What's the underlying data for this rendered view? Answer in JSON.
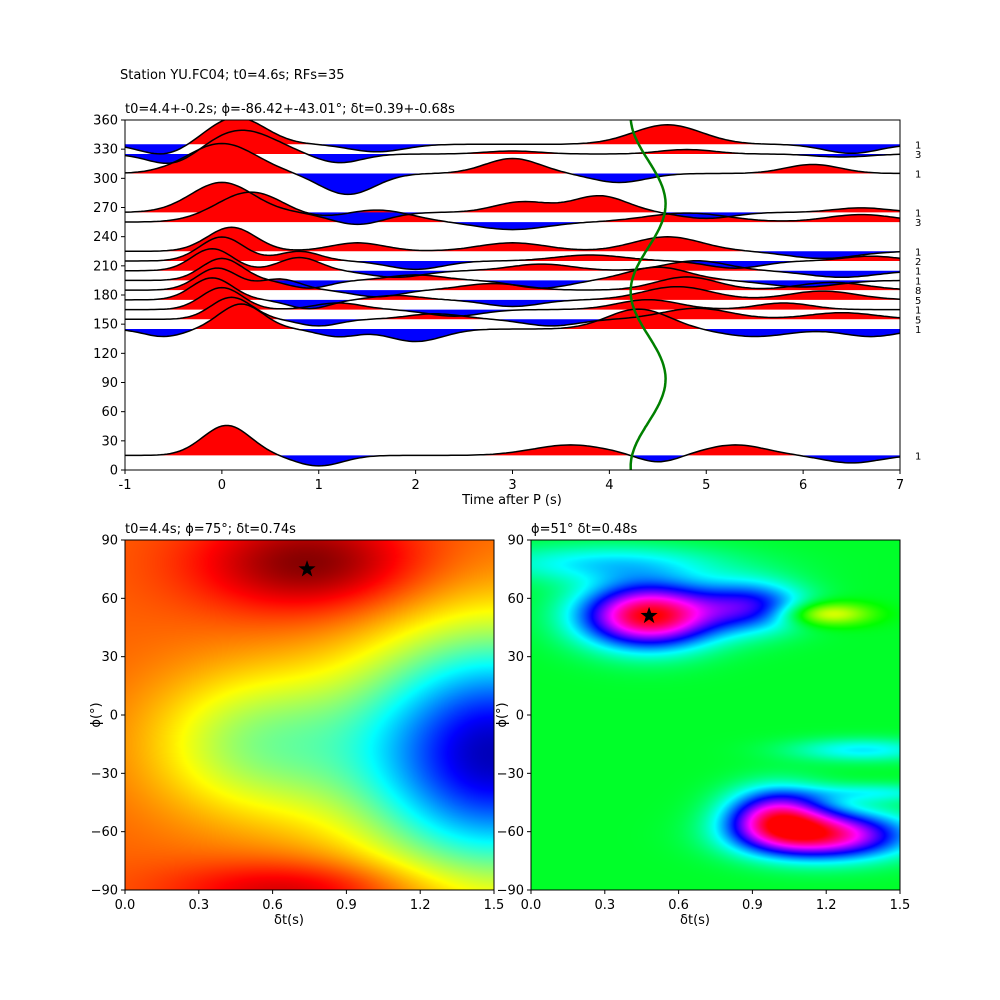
{
  "suptitle": "Station YU.FC04; t0=4.6s; RFs=35",
  "chart_data": [
    {
      "type": "line",
      "panel": "receiver-function-gather",
      "title": "t0=4.4+-0.2s; ϕ=-86.42+-43.01°; δt=0.39+-0.68s",
      "xlabel": "Time after P (s)",
      "ylabel": "",
      "xlim": [
        -1,
        7
      ],
      "ylim": [
        0,
        360
      ],
      "xticks": [
        -1,
        0,
        1,
        2,
        3,
        4,
        5,
        6,
        7
      ],
      "yticks": [
        0,
        30,
        60,
        90,
        120,
        150,
        180,
        210,
        240,
        270,
        300,
        330,
        360
      ],
      "grid": false,
      "positive_fill": "#ff0000",
      "negative_fill": "#0000ff",
      "trace_color": "#000000",
      "traces": [
        {
          "baz": 15,
          "count": "1",
          "amp": 30,
          "peaks": [
            [
              0.05,
              1.0,
              0.35
            ],
            [
              1.0,
              -0.35,
              0.35
            ],
            [
              3.6,
              0.35,
              0.55
            ],
            [
              4.5,
              -0.25,
              0.3
            ],
            [
              5.3,
              0.35,
              0.45
            ],
            [
              6.5,
              -0.25,
              0.4
            ]
          ]
        },
        {
          "baz": 145,
          "count": "1",
          "amp": 25,
          "peaks": [
            [
              0.2,
              1.0,
              0.32
            ],
            [
              -0.6,
              -0.3,
              0.3
            ],
            [
              1.2,
              -0.3,
              0.3
            ],
            [
              2.0,
              -0.5,
              0.4
            ],
            [
              4.3,
              0.8,
              0.45
            ],
            [
              5.5,
              -0.3,
              0.5
            ],
            [
              6.7,
              -0.3,
              0.4
            ]
          ]
        },
        {
          "baz": 155,
          "count": "5",
          "amp": 22,
          "peaks": [
            [
              0.1,
              1.0,
              0.3
            ],
            [
              1.0,
              -0.3,
              0.3
            ],
            [
              2.2,
              0.25,
              0.4
            ],
            [
              3.4,
              -0.3,
              0.4
            ],
            [
              4.9,
              0.5,
              0.5
            ],
            [
              6.4,
              0.3,
              0.5
            ]
          ]
        },
        {
          "baz": 165,
          "count": "1",
          "amp": 22,
          "peaks": [
            [
              0.0,
              1.0,
              0.3
            ],
            [
              1.2,
              0.3,
              0.35
            ],
            [
              2.4,
              -0.3,
              0.4
            ],
            [
              4.4,
              0.45,
              0.45
            ],
            [
              5.8,
              0.3,
              0.4
            ]
          ]
        },
        {
          "baz": 175,
          "count": "5",
          "amp": 22,
          "peaks": [
            [
              -0.1,
              1.0,
              0.3
            ],
            [
              0.9,
              -0.4,
              0.3
            ],
            [
              1.8,
              0.2,
              0.35
            ],
            [
              3.0,
              -0.3,
              0.4
            ],
            [
              4.7,
              0.6,
              0.5
            ],
            [
              6.2,
              0.4,
              0.5
            ]
          ]
        },
        {
          "baz": 185,
          "count": "8",
          "amp": 22,
          "peaks": [
            [
              -0.05,
              1.0,
              0.3
            ],
            [
              0.6,
              0.5,
              0.3
            ],
            [
              1.6,
              -0.3,
              0.35
            ],
            [
              2.8,
              0.3,
              0.45
            ],
            [
              4.8,
              0.6,
              0.45
            ],
            [
              6.3,
              0.35,
              0.5
            ]
          ]
        },
        {
          "baz": 195,
          "count": "1",
          "amp": 22,
          "peaks": [
            [
              0.0,
              1.0,
              0.3
            ],
            [
              0.9,
              -0.35,
              0.3
            ],
            [
              2.0,
              0.25,
              0.4
            ],
            [
              3.3,
              -0.35,
              0.4
            ],
            [
              4.5,
              0.6,
              0.45
            ],
            [
              6.0,
              -0.3,
              0.5
            ]
          ]
        },
        {
          "baz": 205,
          "count": "1",
          "amp": 22,
          "peaks": [
            [
              -0.1,
              1.0,
              0.3
            ],
            [
              0.8,
              0.6,
              0.3
            ],
            [
              1.8,
              -0.3,
              0.4
            ],
            [
              3.3,
              0.3,
              0.45
            ],
            [
              4.9,
              0.45,
              0.45
            ],
            [
              6.4,
              -0.3,
              0.5
            ]
          ]
        },
        {
          "baz": 215,
          "count": "2",
          "amp": 24,
          "peaks": [
            [
              0.0,
              1.0,
              0.32
            ],
            [
              0.8,
              0.4,
              0.3
            ],
            [
              2.0,
              -0.35,
              0.4
            ],
            [
              3.8,
              0.25,
              0.5
            ],
            [
              5.3,
              -0.3,
              0.4
            ],
            [
              6.7,
              0.2,
              0.4
            ]
          ]
        },
        {
          "baz": 225,
          "count": "1",
          "amp": 24,
          "peaks": [
            [
              0.1,
              1.0,
              0.35
            ],
            [
              1.4,
              0.35,
              0.4
            ],
            [
              3.0,
              0.35,
              0.5
            ],
            [
              4.6,
              0.6,
              0.5
            ],
            [
              6.2,
              -0.3,
              0.5
            ]
          ]
        },
        {
          "baz": 255,
          "count": "3",
          "amp": 30,
          "peaks": [
            [
              0.3,
              1.0,
              0.5
            ],
            [
              1.6,
              0.4,
              0.5
            ],
            [
              3.0,
              -0.25,
              0.5
            ],
            [
              4.8,
              0.3,
              0.6
            ],
            [
              6.6,
              0.25,
              0.5
            ]
          ]
        },
        {
          "baz": 265,
          "count": "1",
          "amp": 30,
          "peaks": [
            [
              0.0,
              1.0,
              0.45
            ],
            [
              1.4,
              -0.4,
              0.4
            ],
            [
              3.1,
              0.35,
              0.4
            ],
            [
              3.9,
              0.55,
              0.4
            ],
            [
              5.0,
              -0.2,
              0.4
            ],
            [
              6.6,
              0.15,
              0.4
            ]
          ]
        },
        {
          "baz": 305,
          "count": "1",
          "amp": 30,
          "peaks": [
            [
              0.0,
              1.0,
              0.5
            ],
            [
              1.3,
              -0.7,
              0.4
            ],
            [
              3.0,
              0.5,
              0.4
            ],
            [
              4.1,
              -0.3,
              0.4
            ],
            [
              6.1,
              0.3,
              0.4
            ]
          ]
        },
        {
          "baz": 325,
          "count": "3",
          "amp": 30,
          "peaks": [
            [
              -0.5,
              -0.4,
              0.35
            ],
            [
              0.2,
              0.8,
              0.5
            ],
            [
              1.2,
              -0.3,
              0.35
            ],
            [
              3.0,
              0.1,
              0.4
            ],
            [
              4.8,
              0.15,
              0.4
            ],
            [
              6.4,
              -0.1,
              0.4
            ]
          ]
        },
        {
          "baz": 335,
          "count": "1",
          "amp": 30,
          "peaks": [
            [
              -0.6,
              -0.35,
              0.35
            ],
            [
              0.15,
              0.9,
              0.42
            ],
            [
              1.6,
              -0.25,
              0.4
            ],
            [
              4.6,
              0.65,
              0.5
            ],
            [
              6.5,
              -0.3,
              0.4
            ]
          ]
        }
      ],
      "t0_curve": {
        "color": "#008000",
        "center_time": 4.4,
        "amplitude": 0.18,
        "period_deg": 180,
        "phase_deg": -86.42
      }
    },
    {
      "type": "heatmap",
      "panel": "energy-grid-left",
      "title": "t0=4.4s; ϕ=75°; δt=0.74s",
      "xlabel": "δt(s)",
      "ylabel": "ϕ(°)",
      "xlim": [
        0.0,
        1.5
      ],
      "ylim": [
        -90,
        90
      ],
      "xticks": [
        "0.0",
        "0.3",
        "0.6",
        "0.9",
        "1.2",
        "1.5"
      ],
      "yticks": [
        "−90",
        "−60",
        "−30",
        "0",
        "30",
        "60",
        "90"
      ],
      "colormap": "jet",
      "best": {
        "dt": 0.74,
        "phi": 75
      }
    },
    {
      "type": "heatmap",
      "panel": "energy-grid-right",
      "title": "ϕ=51° δt=0.48s",
      "xlabel": "δt(s)",
      "ylabel": "ϕ(°)",
      "xlim": [
        0.0,
        1.5
      ],
      "ylim": [
        -90,
        90
      ],
      "xticks": [
        "0.0",
        "0.3",
        "0.6",
        "0.9",
        "1.2",
        "1.5"
      ],
      "yticks": [
        "−90",
        "−60",
        "−30",
        "0",
        "30",
        "60",
        "90"
      ],
      "colormap": "hsv",
      "best": {
        "dt": 0.48,
        "phi": 51
      }
    }
  ]
}
